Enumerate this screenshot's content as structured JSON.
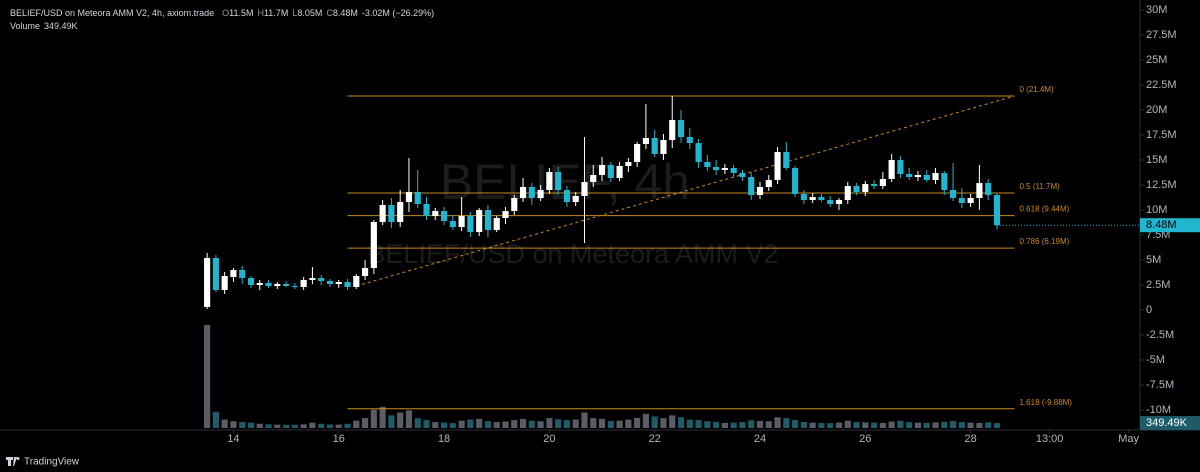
{
  "chart_data": {
    "type": "candlestick",
    "title": "BELIEF/USD on Meteora AMM V2, 4h, axiom.trade",
    "header_values": [
      {
        "key": "O",
        "text": "11.5M"
      },
      {
        "key": "H",
        "text": "11.7M"
      },
      {
        "key": "L",
        "text": "8.05M"
      },
      {
        "key": "C",
        "text": "8.48M"
      }
    ],
    "change_text": "-3.02M (−26.29%)",
    "volume_title": "Volume",
    "volume_header_value": "349.49K",
    "watermark": [
      "BELIEF, 4h",
      "BELIEF/USD on Meteora AMM V2"
    ],
    "brand": "TradingView",
    "last_price_label": "8.48M",
    "volume_label": "349.49K",
    "up_color": "#ffffff",
    "down_color": "#22b5cf",
    "volume_up_color": "#5a5d66",
    "volume_down_color": "#1d5c68",
    "fib_color": "#c98a1e",
    "open": [
      0.3,
      5.2,
      2.0,
      3.3,
      4.0,
      3.2,
      2.5,
      2.7,
      2.4,
      2.6,
      2.4,
      2.3,
      3.0,
      3.2,
      2.9,
      2.6,
      2.8,
      2.3,
      3.4,
      4.2,
      8.8,
      10.5,
      8.8,
      10.8,
      11.8,
      10.6,
      9.4,
      9.9,
      8.9,
      8.3,
      9.4,
      7.8,
      10.0,
      8.0,
      9.2,
      9.9,
      11.2,
      12.3,
      11.2,
      12.0,
      13.8,
      12.0,
      10.8,
      11.4,
      12.8,
      13.5,
      14.5,
      13.2,
      14.4,
      14.8,
      16.6,
      17.2,
      15.6,
      17.0,
      19.0,
      17.3,
      16.7,
      14.8,
      14.3,
      14.0,
      14.2,
      13.7,
      13.3,
      11.5,
      12.3,
      13.0,
      15.8,
      14.2,
      11.6,
      11.0,
      11.3,
      11.0,
      10.6,
      11.0,
      12.4,
      11.8,
      12.6,
      12.4,
      13.1,
      15.0,
      13.6,
      13.3,
      13.5,
      13.0,
      13.7,
      12.0,
      11.2,
      10.7,
      11.2,
      12.7,
      11.5
    ],
    "high": [
      5.7,
      5.5,
      3.8,
      4.2,
      4.4,
      3.4,
      3.0,
      3.0,
      2.8,
      2.9,
      2.7,
      3.3,
      4.3,
      3.5,
      3.1,
      3.0,
      3.1,
      3.6,
      5.0,
      9.0,
      11.0,
      11.2,
      12.0,
      15.2,
      14.0,
      11.3,
      10.2,
      10.3,
      9.5,
      11.3,
      9.8,
      10.2,
      10.5,
      9.4,
      10.3,
      11.5,
      13.2,
      12.7,
      12.5,
      14.2,
      14.3,
      12.4,
      11.8,
      17.3,
      14.5,
      15.3,
      14.8,
      14.8,
      15.2,
      16.8,
      20.6,
      18.0,
      17.6,
      21.4,
      20.0,
      18.2,
      17.1,
      15.5,
      15.0,
      14.6,
      14.5,
      14.0,
      13.8,
      12.8,
      13.5,
      16.3,
      16.8,
      14.4,
      12.0,
      11.7,
      11.6,
      11.4,
      11.2,
      12.8,
      12.7,
      12.9,
      13.0,
      13.8,
      15.6,
      15.4,
      14.2,
      13.9,
      14.0,
      14.2,
      13.9,
      14.7,
      12.2,
      11.6,
      14.5,
      13.1,
      11.7
    ],
    "low": [
      0.1,
      1.8,
      1.6,
      2.8,
      2.6,
      2.2,
      2.0,
      2.2,
      2.1,
      2.3,
      2.1,
      2.0,
      2.6,
      2.5,
      2.3,
      2.2,
      2.0,
      2.1,
      3.0,
      3.6,
      8.5,
      8.2,
      8.3,
      9.8,
      10.2,
      9.0,
      9.0,
      8.5,
      8.0,
      7.9,
      7.3,
      7.4,
      7.3,
      7.8,
      8.6,
      9.5,
      10.8,
      10.5,
      10.9,
      11.6,
      11.5,
      10.3,
      10.4,
      6.7,
      12.3,
      12.9,
      12.8,
      12.9,
      13.8,
      14.3,
      16.1,
      15.3,
      15.0,
      16.2,
      16.7,
      16.1,
      14.2,
      13.9,
      13.5,
      13.6,
      13.3,
      12.9,
      11.0,
      11.1,
      11.9,
      12.6,
      14.0,
      11.3,
      10.6,
      10.7,
      10.8,
      10.3,
      10.0,
      10.6,
      11.5,
      11.4,
      12.1,
      12.1,
      12.8,
      13.2,
      13.0,
      12.9,
      12.8,
      12.6,
      11.5,
      10.9,
      10.2,
      10.3,
      10.0,
      11.0,
      8.05
    ],
    "close": [
      5.2,
      2.0,
      3.4,
      4.0,
      3.2,
      2.5,
      2.7,
      2.4,
      2.6,
      2.4,
      2.3,
      3.0,
      3.2,
      2.9,
      2.6,
      2.8,
      2.3,
      3.4,
      4.2,
      8.8,
      10.5,
      8.8,
      10.8,
      11.8,
      10.6,
      9.4,
      9.9,
      8.9,
      8.3,
      9.4,
      7.8,
      10.0,
      8.0,
      9.2,
      9.9,
      11.2,
      12.3,
      11.2,
      12.0,
      13.8,
      12.0,
      10.8,
      11.4,
      12.8,
      13.5,
      14.5,
      13.2,
      14.4,
      14.8,
      16.6,
      17.2,
      15.6,
      17.0,
      19.0,
      17.3,
      16.7,
      14.8,
      14.3,
      14.0,
      14.2,
      13.7,
      13.3,
      11.5,
      12.3,
      13.0,
      15.8,
      14.2,
      11.6,
      11.0,
      11.3,
      11.0,
      10.6,
      11.0,
      12.4,
      11.8,
      12.6,
      12.4,
      13.1,
      15.0,
      13.6,
      13.3,
      13.5,
      13.0,
      13.7,
      12.0,
      11.2,
      10.7,
      11.2,
      12.7,
      11.5,
      8.48
    ],
    "volume": [
      7300,
      1150,
      600,
      480,
      420,
      380,
      300,
      260,
      240,
      220,
      230,
      260,
      380,
      300,
      250,
      240,
      300,
      520,
      700,
      1300,
      1500,
      900,
      1100,
      1250,
      700,
      560,
      420,
      380,
      350,
      520,
      600,
      650,
      480,
      420,
      460,
      560,
      640,
      520,
      480,
      700,
      620,
      560,
      600,
      1100,
      700,
      650,
      500,
      520,
      600,
      720,
      1000,
      820,
      700,
      900,
      760,
      600,
      560,
      480,
      440,
      360,
      380,
      420,
      540,
      500,
      480,
      760,
      700,
      560,
      420,
      380,
      360,
      340,
      380,
      520,
      420,
      400,
      380,
      360,
      460,
      520,
      420,
      380,
      360,
      400,
      440,
      500,
      420,
      380,
      360,
      400,
      349.49
    ],
    "vlim": [
      0,
      7800
    ],
    "fib_levels": [
      {
        "value": 21.4,
        "label": "0 (21.4M)"
      },
      {
        "value": 11.7,
        "label": "0.5 (11.7M)"
      },
      {
        "value": 9.44,
        "label": "0.618 (9.44M)"
      },
      {
        "value": 6.19,
        "label": "0.786 (6.19M)"
      },
      {
        "value": -9.88,
        "label": "1.618 (-9.88M)"
      }
    ],
    "fib_range": [
      16,
      92
    ],
    "trend_line": {
      "x": [
        17,
        92
      ],
      "values": [
        2.4,
        21.4
      ]
    },
    "xlim": [
      -23.6,
      106.3
    ],
    "xticks": [
      {
        "value": 3,
        "label": "14"
      },
      {
        "value": 15,
        "label": "16"
      },
      {
        "value": 27,
        "label": "18"
      },
      {
        "value": 39,
        "label": "20"
      },
      {
        "value": 51,
        "label": "22"
      },
      {
        "value": 63,
        "label": "24"
      },
      {
        "value": 75,
        "label": "26"
      },
      {
        "value": 87,
        "label": "28"
      },
      {
        "value": 96,
        "label": "13:00"
      },
      {
        "value": 105,
        "label": "May"
      }
    ],
    "ylim": [
      -12,
      31
    ],
    "yticks": [
      {
        "value": 30,
        "label": "30M"
      },
      {
        "value": 27.5,
        "label": "27.5M"
      },
      {
        "value": 25,
        "label": "25M"
      },
      {
        "value": 22.5,
        "label": "22.5M"
      },
      {
        "value": 20,
        "label": "20M"
      },
      {
        "value": 17.5,
        "label": "17.5M"
      },
      {
        "value": 15,
        "label": "15M"
      },
      {
        "value": 12.5,
        "label": "12.5M"
      },
      {
        "value": 10,
        "label": "10M"
      },
      {
        "value": 7.5,
        "label": "7.5M"
      },
      {
        "value": 5,
        "label": "5M"
      },
      {
        "value": 2.5,
        "label": "2.5M"
      },
      0,
      {
        "value": -2.5,
        "label": "-2.5M"
      },
      {
        "value": -5,
        "label": "-5M"
      },
      {
        "value": -7.5,
        "label": "-7.5M"
      },
      {
        "value": -10,
        "label": "-10M"
      }
    ]
  }
}
